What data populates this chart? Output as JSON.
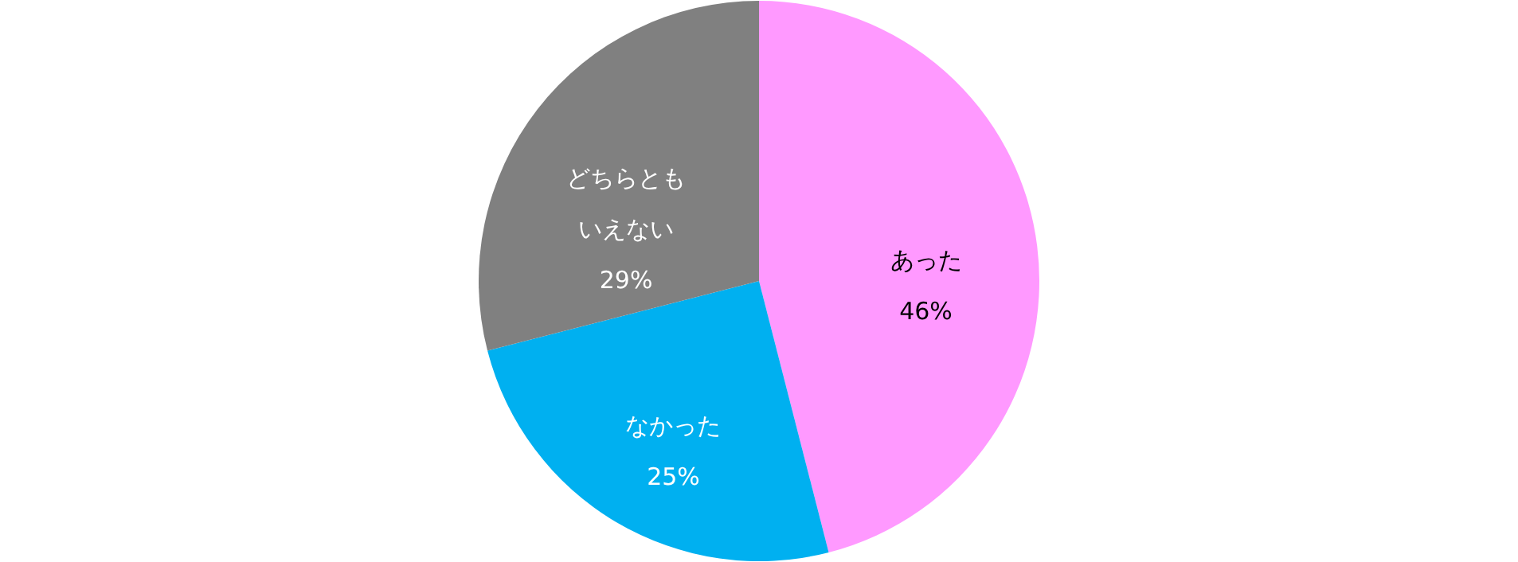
{
  "chart_data": {
    "type": "pie",
    "categories": [
      "あった",
      "なかった",
      "どちらともいえない"
    ],
    "values": [
      46,
      25,
      29
    ],
    "colors": [
      "#ff99ff",
      "#00b0f0",
      "#808080"
    ],
    "value_labels": [
      "46%",
      "25%",
      "29%"
    ],
    "legend": false
  }
}
